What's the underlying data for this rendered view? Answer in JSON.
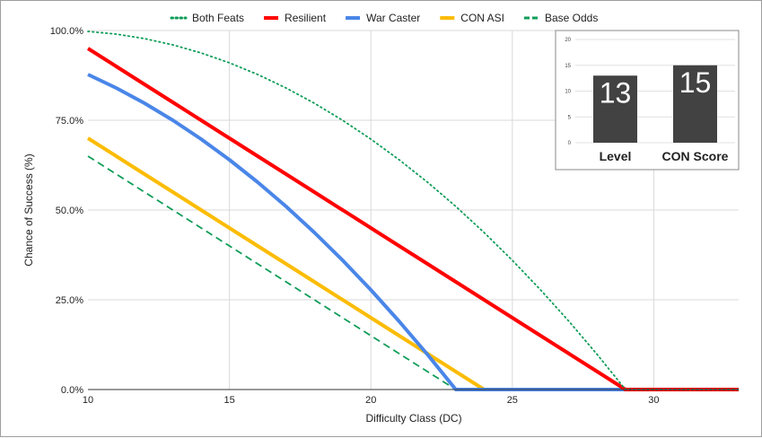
{
  "chart_data": {
    "type": "line",
    "title": "",
    "xlabel": "Difficulty Class (DC)",
    "ylabel": "Chance of Success (%)",
    "xlim": [
      10,
      33
    ],
    "ylim": [
      0,
      100
    ],
    "x_ticks": [
      10,
      15,
      20,
      25,
      30
    ],
    "y_ticks": [
      0,
      25,
      50,
      75,
      100
    ],
    "y_tick_labels": [
      "0.0%",
      "25.0%",
      "50.0%",
      "75.0%",
      "100.0%"
    ],
    "grid": true,
    "legend_position": "top",
    "x": [
      10,
      11,
      12,
      13,
      14,
      15,
      16,
      17,
      18,
      19,
      20,
      21,
      22,
      23,
      24,
      25,
      26,
      27,
      28,
      29,
      30,
      31,
      32,
      33
    ],
    "series": [
      {
        "name": "Both Feats",
        "style": "dotted",
        "color": "#0f9d58",
        "values": [
          99.75,
          99.0,
          97.75,
          96.0,
          93.75,
          91.0,
          87.75,
          84.0,
          79.75,
          75.0,
          69.75,
          64.0,
          57.75,
          51.0,
          43.75,
          36.0,
          27.75,
          19.0,
          9.75,
          0,
          0,
          0,
          0,
          0
        ]
      },
      {
        "name": "Resilient",
        "style": "solid",
        "color": "#ff0000",
        "values": [
          95,
          90,
          85,
          80,
          75,
          70,
          65,
          60,
          55,
          50,
          45,
          40,
          35,
          30,
          25,
          20,
          15,
          10,
          5,
          0,
          0,
          0,
          0,
          0
        ]
      },
      {
        "name": "War Caster",
        "style": "solid",
        "color": "#4a86e8",
        "values": [
          87.75,
          84.0,
          79.75,
          75.0,
          69.75,
          64.0,
          57.75,
          51.0,
          43.75,
          36.0,
          27.75,
          19.0,
          9.75,
          0,
          0,
          0,
          0,
          0,
          0,
          0,
          0,
          0,
          0,
          0
        ]
      },
      {
        "name": "CON ASI",
        "style": "solid",
        "color": "#fbbc04",
        "values": [
          70,
          65,
          60,
          55,
          50,
          45,
          40,
          35,
          30,
          25,
          20,
          15,
          10,
          5,
          0,
          0,
          0,
          0,
          0,
          0,
          0,
          0,
          0,
          0
        ]
      },
      {
        "name": "Base Odds",
        "style": "dashed",
        "color": "#0f9d58",
        "values": [
          65,
          60,
          55,
          50,
          45,
          40,
          35,
          30,
          25,
          20,
          15,
          10,
          5,
          0,
          0,
          0,
          0,
          0,
          0,
          0,
          0,
          0,
          0,
          0
        ]
      }
    ],
    "inset": {
      "type": "bar",
      "categories": [
        "Level",
        "CON Score"
      ],
      "values": [
        13,
        15
      ],
      "ylim": [
        0,
        20
      ],
      "y_ticks": [
        0,
        5,
        10,
        15,
        20
      ],
      "bar_color": "#424242"
    }
  }
}
